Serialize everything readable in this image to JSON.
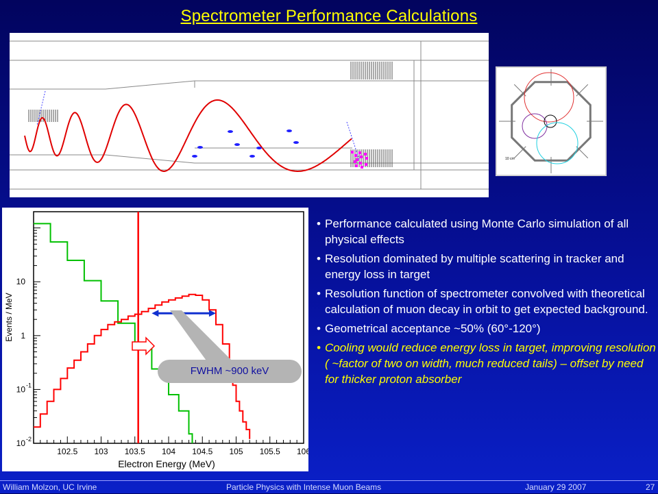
{
  "slide": {
    "title": "Spectrometer Performance Calculations",
    "footer": {
      "author": "William  Molzon, UC Irvine",
      "talk": "Particle Physics with Intense Muon Beams",
      "date": "January  29 2007",
      "page": "27"
    }
  },
  "images": {
    "simulation": "tracker-helix-simulation",
    "cross_section": "tracker-cross-section",
    "cross_section_scale": "10 cm"
  },
  "plot": {
    "annotation": "FWHM ~900 keV",
    "chart_data": {
      "type": "line",
      "title": "",
      "xlabel": "Electron Energy (MeV)",
      "ylabel": "Events / MeV",
      "xlim": [
        102,
        106
      ],
      "ylim": [
        0.01,
        200
      ],
      "log_y": true,
      "x_ticks": [
        "102.5",
        "103",
        "103.5",
        "104",
        "104.5",
        "105",
        "105.5",
        "106"
      ],
      "y_ticks": [
        {
          "label": "10",
          "exp": "-2",
          "value": 0.01
        },
        {
          "label": "10",
          "exp": "-1",
          "value": 0.1
        },
        {
          "label": "1",
          "exp": "",
          "value": 1
        },
        {
          "label": "10",
          "exp": "",
          "value": 10
        }
      ],
      "cut_line_x": 103.55,
      "fwhm_arrow_x": [
        103.75,
        104.7
      ],
      "series": [
        {
          "color": "#00c000",
          "x": [
            102,
            102.25,
            102.5,
            102.75,
            103,
            103.25,
            103.5,
            103.75,
            104,
            104.15,
            104.3,
            104.35
          ],
          "y": [
            120,
            55,
            25,
            10.5,
            4.4,
            1.7,
            0.65,
            0.24,
            0.08,
            0.04,
            0.015,
            0.01
          ]
        },
        {
          "color": "#ff0000",
          "x": [
            102,
            102.1,
            102.2,
            102.3,
            102.4,
            102.5,
            102.6,
            102.7,
            102.8,
            102.9,
            103,
            103.1,
            103.2,
            103.3,
            103.4,
            103.5,
            103.6,
            103.7,
            103.8,
            103.9,
            104,
            104.1,
            104.2,
            104.3,
            104.4,
            104.5,
            104.6,
            104.7,
            104.8,
            104.9,
            104.95,
            105,
            105.05,
            105.1,
            105.15,
            105.2
          ],
          "y": [
            0.02,
            0.035,
            0.06,
            0.1,
            0.16,
            0.25,
            0.35,
            0.5,
            0.7,
            1.0,
            1.3,
            1.6,
            1.8,
            2.0,
            2.3,
            2.5,
            2.8,
            3.2,
            3.7,
            4.2,
            4.6,
            5.0,
            5.4,
            5.8,
            5.6,
            4.6,
            3.0,
            1.6,
            0.7,
            0.25,
            0.12,
            0.06,
            0.04,
            0.025,
            0.018,
            0.012
          ]
        }
      ]
    }
  },
  "bullets": [
    {
      "text": "Performance calculated using Monte Carlo simulation of all physical effects",
      "highlight": false
    },
    {
      "text": "Resolution dominated by multiple scattering in tracker and energy loss in target",
      "highlight": false
    },
    {
      "text": "Resolution function of spectrometer convolved with theoretical calculation of muon decay in orbit to get expected background.",
      "highlight": false
    },
    {
      "text": "Geometrical acceptance ~50% (60°-120°)",
      "highlight": false
    },
    {
      "text": "Cooling would reduce energy loss in target, improving resolution ( ~factor of two on width, much reduced tails) – offset by need for thicker proton absorber",
      "highlight": true
    }
  ]
}
